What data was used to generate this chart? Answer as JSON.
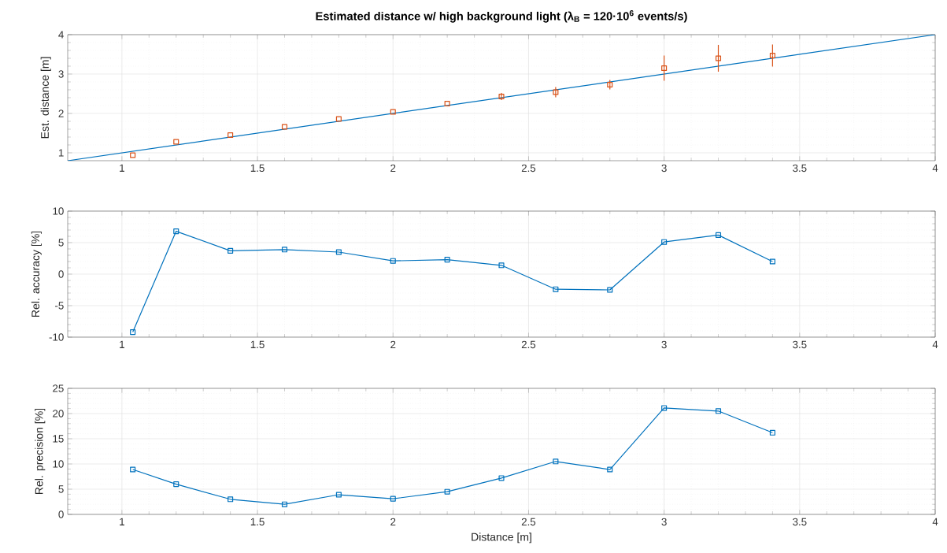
{
  "chart_data": [
    {
      "type": "scatter",
      "title": "**Estimated distance w/ high background light (λ$_{B}$ = 120·10$^{6}$ events/s)**",
      "ylabel": "Est. distance [m]",
      "x": [
        1.04,
        1.2,
        1.4,
        1.6,
        1.8,
        2.0,
        2.2,
        2.4,
        2.6,
        2.8,
        3.0,
        3.2,
        3.4
      ],
      "series": [
        {
          "type": "line",
          "color": "#0072bd",
          "x": [
            0.8,
            4
          ],
          "values": [
            0.8,
            4
          ],
          "marker": "none"
        },
        {
          "type": "scatter",
          "color": "#d95319",
          "marker": "square",
          "values": [
            0.94,
            1.28,
            1.45,
            1.66,
            1.86,
            2.04,
            2.25,
            2.43,
            2.54,
            2.73,
            3.15,
            3.4,
            3.47
          ],
          "errors": [
            null,
            null,
            null,
            null,
            null,
            null,
            null,
            0.09,
            0.13,
            0.12,
            0.32,
            0.34,
            0.28
          ]
        }
      ],
      "xlim": [
        0.8,
        4
      ],
      "xticks": [
        1,
        1.5,
        2,
        2.5,
        3,
        3.5,
        4
      ],
      "ylim": [
        0.8,
        4
      ],
      "yticks": [
        1,
        2,
        3,
        4
      ],
      "grid": true
    },
    {
      "type": "line",
      "ylabel": "Rel. accuracy [%]",
      "x": [
        1.04,
        1.2,
        1.4,
        1.6,
        1.8,
        2.0,
        2.2,
        2.4,
        2.6,
        2.8,
        3.0,
        3.2,
        3.4
      ],
      "series": [
        {
          "color": "#0072bd",
          "values": [
            -9.2,
            6.8,
            3.7,
            3.9,
            3.5,
            2.1,
            2.3,
            1.4,
            -2.4,
            -2.5,
            5.1,
            6.2,
            2.0
          ]
        }
      ],
      "marker": "square",
      "xlim": [
        0.8,
        4
      ],
      "xticks": [
        1,
        1.5,
        2,
        2.5,
        3,
        3.5,
        4
      ],
      "ylim": [
        -10,
        10
      ],
      "yticks": [
        -10,
        -5,
        0,
        5,
        10
      ],
      "grid": true
    },
    {
      "type": "line",
      "ylabel": "Rel. precision [%]",
      "xlabel": "Distance [m]",
      "x": [
        1.04,
        1.2,
        1.4,
        1.6,
        1.8,
        2.0,
        2.2,
        2.4,
        2.6,
        2.8,
        3.0,
        3.2,
        3.4
      ],
      "series": [
        {
          "color": "#0072bd",
          "values": [
            8.9,
            6.0,
            3.0,
            2.0,
            3.9,
            3.1,
            4.5,
            7.2,
            10.5,
            8.9,
            21.1,
            20.5,
            16.2
          ]
        }
      ],
      "marker": "square",
      "xlim": [
        0.8,
        4
      ],
      "xticks": [
        1,
        1.5,
        2,
        2.5,
        3,
        3.5,
        4
      ],
      "ylim": [
        0,
        25
      ],
      "yticks": [
        0,
        5,
        10,
        15,
        20,
        25
      ],
      "grid": true
    }
  ]
}
